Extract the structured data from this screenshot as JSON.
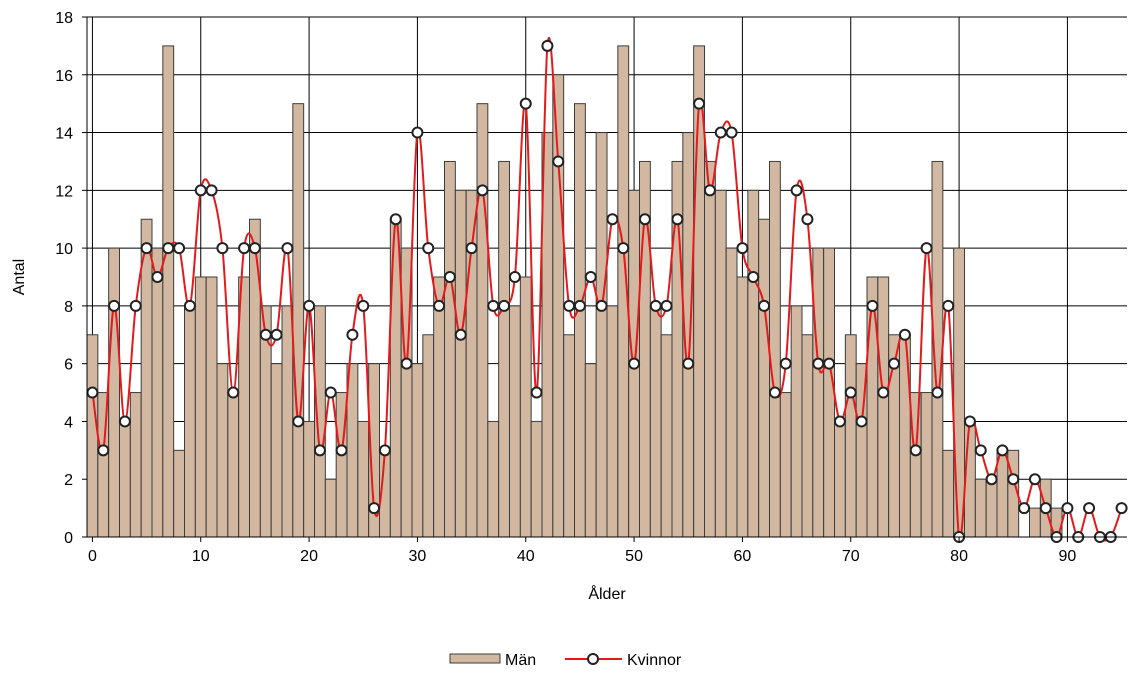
{
  "chart_data": {
    "type": "bar",
    "xlabel": "Ålder",
    "ylabel": "Antal",
    "xlim": [
      -0.5,
      95.5
    ],
    "ylim": [
      0,
      18
    ],
    "x_ticks": [
      0,
      10,
      20,
      30,
      40,
      50,
      60,
      70,
      80,
      90
    ],
    "y_ticks": [
      0,
      2,
      4,
      6,
      8,
      10,
      12,
      14,
      16,
      18
    ],
    "grid": true,
    "legend_position": "bottom-center",
    "x": [
      0,
      1,
      2,
      3,
      4,
      5,
      6,
      7,
      8,
      9,
      10,
      11,
      12,
      13,
      14,
      15,
      16,
      17,
      18,
      19,
      20,
      21,
      22,
      23,
      24,
      25,
      26,
      27,
      28,
      29,
      30,
      31,
      32,
      33,
      34,
      35,
      36,
      37,
      38,
      39,
      40,
      41,
      42,
      43,
      44,
      45,
      46,
      47,
      48,
      49,
      50,
      51,
      52,
      53,
      54,
      55,
      56,
      57,
      58,
      59,
      60,
      61,
      62,
      63,
      64,
      65,
      66,
      67,
      68,
      69,
      70,
      71,
      72,
      73,
      74,
      75,
      76,
      77,
      78,
      79,
      80,
      81,
      82,
      83,
      84,
      85,
      86,
      87,
      88,
      89,
      90,
      91,
      92,
      93,
      94,
      95
    ],
    "series": [
      {
        "name": "Män",
        "type": "bar",
        "color": "#d2b8a0",
        "edge_color": "#3c3c3c",
        "values": [
          7,
          5,
          10,
          4,
          5,
          11,
          10,
          17,
          3,
          8,
          9,
          9,
          6,
          5,
          9,
          11,
          8,
          6,
          8,
          15,
          4,
          8,
          2,
          5,
          6,
          4,
          6,
          3,
          11,
          10,
          6,
          7,
          9,
          13,
          12,
          12,
          15,
          4,
          13,
          8,
          9,
          4,
          14,
          16,
          7,
          15,
          6,
          14,
          8,
          17,
          12,
          13,
          8,
          7,
          13,
          14,
          17,
          13,
          12,
          10,
          9,
          12,
          11,
          13,
          5,
          8,
          7,
          10,
          10,
          4,
          7,
          6,
          9,
          9,
          7,
          7,
          5,
          5,
          13,
          3,
          10,
          4,
          2,
          2,
          3,
          3,
          0,
          1,
          2,
          1,
          0,
          0,
          0,
          0,
          0,
          0
        ]
      },
      {
        "name": "Kvinnor",
        "type": "line",
        "color": "#e31a1c",
        "marker": "circle",
        "smooth": true,
        "values": [
          5,
          3,
          8,
          4,
          8,
          10,
          9,
          10,
          10,
          8,
          12,
          12,
          10,
          5,
          10,
          10,
          7,
          7,
          10,
          4,
          8,
          3,
          5,
          3,
          7,
          8,
          1,
          3,
          11,
          6,
          14,
          10,
          8,
          9,
          7,
          10,
          12,
          8,
          8,
          9,
          15,
          5,
          17,
          13,
          8,
          8,
          9,
          8,
          11,
          10,
          6,
          11,
          8,
          8,
          11,
          6,
          15,
          12,
          14,
          14,
          10,
          9,
          8,
          5,
          6,
          12,
          11,
          6,
          6,
          4,
          5,
          4,
          8,
          5,
          6,
          7,
          3,
          10,
          5,
          8,
          0,
          4,
          3,
          2,
          3,
          2,
          1,
          2,
          1,
          0,
          1,
          0,
          1,
          0,
          0,
          1
        ]
      }
    ]
  }
}
